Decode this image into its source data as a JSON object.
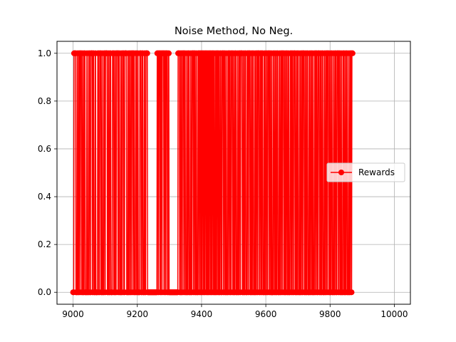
{
  "chart_data": {
    "type": "line",
    "title": "Noise Method, No Neg.",
    "xlabel": "",
    "ylabel": "",
    "xlim": [
      8950,
      10050
    ],
    "ylim": [
      -0.05,
      1.05
    ],
    "x_ticks": [
      9000,
      9200,
      9400,
      9600,
      9800,
      10000
    ],
    "y_ticks": [
      0.0,
      0.2,
      0.4,
      0.6,
      0.8,
      1.0
    ],
    "x_tick_labels": [
      "9000",
      "9200",
      "9400",
      "9600",
      "9800",
      "10000"
    ],
    "y_tick_labels": [
      "0.0",
      "0.2",
      "0.4",
      "0.6",
      "0.8",
      "1.0"
    ],
    "grid": true,
    "legend_position": "center-right",
    "marker": "circle",
    "series": [
      {
        "name": "Rewards",
        "color": "#ff0000",
        "x_start": 9000,
        "x_step": 1,
        "segments": [
          [
            0,
            3
          ],
          [
            1,
            6
          ],
          [
            0,
            4
          ],
          [
            1,
            2
          ],
          [
            0,
            3
          ],
          [
            1,
            3
          ],
          [
            0,
            2
          ],
          [
            1,
            4
          ],
          [
            0,
            3
          ],
          [
            1,
            2
          ],
          [
            0,
            3
          ],
          [
            1,
            3
          ],
          [
            0,
            5
          ],
          [
            1,
            2
          ],
          [
            0,
            4
          ],
          [
            1,
            3
          ],
          [
            0,
            3
          ],
          [
            1,
            5
          ],
          [
            0,
            2
          ],
          [
            1,
            3
          ],
          [
            0,
            4
          ],
          [
            1,
            2
          ],
          [
            0,
            6
          ],
          [
            1,
            3
          ],
          [
            0,
            3
          ],
          [
            1,
            4
          ],
          [
            0,
            3
          ],
          [
            1,
            2
          ],
          [
            0,
            4
          ],
          [
            1,
            3
          ],
          [
            0,
            2
          ],
          [
            1,
            6
          ],
          [
            0,
            3
          ],
          [
            1,
            2
          ],
          [
            0,
            3
          ],
          [
            1,
            3
          ],
          [
            0,
            5
          ],
          [
            1,
            4
          ],
          [
            0,
            3
          ],
          [
            1,
            2
          ],
          [
            0,
            3
          ],
          [
            1,
            5
          ],
          [
            0,
            2
          ],
          [
            1,
            3
          ],
          [
            0,
            4
          ],
          [
            1,
            2
          ],
          [
            0,
            3
          ],
          [
            1,
            4
          ],
          [
            0,
            3
          ],
          [
            1,
            6
          ],
          [
            0,
            4
          ],
          [
            1,
            2
          ],
          [
            0,
            3
          ],
          [
            1,
            3
          ],
          [
            0,
            3
          ],
          [
            1,
            4
          ],
          [
            0,
            2
          ],
          [
            1,
            3
          ],
          [
            0,
            4
          ],
          [
            1,
            3
          ],
          [
            0,
            3
          ],
          [
            1,
            2
          ],
          [
            0,
            5
          ],
          [
            1,
            4
          ],
          [
            0,
            3
          ],
          [
            1,
            3
          ],
          [
            0,
            4
          ],
          [
            1,
            2
          ],
          [
            0,
            3
          ],
          [
            1,
            5
          ],
          [
            0,
            30
          ],
          [
            1,
            3
          ],
          [
            0,
            2
          ],
          [
            1,
            4
          ],
          [
            0,
            2
          ],
          [
            1,
            3
          ],
          [
            0,
            2
          ],
          [
            1,
            5
          ],
          [
            0,
            2
          ],
          [
            1,
            3
          ],
          [
            0,
            2
          ],
          [
            1,
            4
          ],
          [
            0,
            3
          ],
          [
            1,
            2
          ],
          [
            0,
            28
          ],
          [
            1,
            5
          ],
          [
            0,
            3
          ],
          [
            1,
            3
          ],
          [
            0,
            3
          ],
          [
            1,
            4
          ],
          [
            0,
            2
          ],
          [
            1,
            3
          ],
          [
            0,
            4
          ],
          [
            1,
            2
          ],
          [
            0,
            3
          ],
          [
            1,
            3
          ],
          [
            0,
            4
          ],
          [
            1,
            2
          ],
          [
            0,
            3
          ],
          [
            1,
            4
          ],
          [
            0,
            2
          ],
          [
            1,
            3
          ],
          [
            0,
            3
          ],
          [
            1,
            2
          ],
          [
            0,
            4
          ],
          [
            1,
            3
          ],
          [
            0,
            2
          ],
          [
            1,
            3
          ],
          [
            0,
            2
          ],
          [
            1,
            2
          ],
          [
            0,
            2
          ],
          [
            1,
            3
          ],
          [
            0,
            2
          ],
          [
            1,
            2
          ],
          [
            0,
            2
          ],
          [
            1,
            3
          ],
          [
            0,
            2
          ],
          [
            1,
            2
          ],
          [
            0,
            2
          ],
          [
            1,
            2
          ],
          [
            0,
            2
          ],
          [
            1,
            3
          ],
          [
            0,
            2
          ],
          [
            1,
            2
          ],
          [
            0,
            2
          ],
          [
            1,
            3
          ],
          [
            0,
            2
          ],
          [
            1,
            2
          ],
          [
            0,
            3
          ],
          [
            1,
            2
          ],
          [
            0,
            2
          ],
          [
            1,
            3
          ],
          [
            0,
            2
          ],
          [
            1,
            2
          ],
          [
            0,
            3
          ],
          [
            1,
            3
          ],
          [
            0,
            3
          ],
          [
            1,
            4
          ],
          [
            0,
            2
          ],
          [
            1,
            3
          ],
          [
            0,
            3
          ],
          [
            1,
            2
          ],
          [
            0,
            4
          ],
          [
            1,
            3
          ],
          [
            0,
            2
          ],
          [
            1,
            3
          ],
          [
            0,
            3
          ],
          [
            1,
            4
          ],
          [
            0,
            3
          ],
          [
            1,
            2
          ],
          [
            0,
            3
          ],
          [
            1,
            3
          ],
          [
            0,
            4
          ],
          [
            1,
            2
          ],
          [
            0,
            3
          ],
          [
            1,
            3
          ],
          [
            0,
            2
          ],
          [
            1,
            5
          ],
          [
            0,
            3
          ],
          [
            1,
            2
          ],
          [
            0,
            3
          ],
          [
            1,
            3
          ],
          [
            0,
            4
          ],
          [
            1,
            3
          ],
          [
            0,
            2
          ],
          [
            1,
            4
          ],
          [
            0,
            3
          ],
          [
            1,
            2
          ],
          [
            0,
            3
          ],
          [
            1,
            3
          ],
          [
            0,
            4
          ],
          [
            1,
            2
          ],
          [
            0,
            3
          ],
          [
            1,
            3
          ],
          [
            0,
            2
          ],
          [
            1,
            4
          ],
          [
            0,
            3
          ],
          [
            1,
            3
          ],
          [
            0,
            2
          ],
          [
            1,
            3
          ],
          [
            0,
            4
          ],
          [
            1,
            2
          ],
          [
            0,
            3
          ],
          [
            1,
            3
          ],
          [
            0,
            3
          ],
          [
            1,
            4
          ],
          [
            0,
            2
          ],
          [
            1,
            3
          ],
          [
            0,
            3
          ],
          [
            1,
            2
          ],
          [
            0,
            4
          ],
          [
            1,
            3
          ],
          [
            0,
            3
          ],
          [
            1,
            2
          ],
          [
            0,
            3
          ],
          [
            1,
            3
          ],
          [
            0,
            4
          ],
          [
            1,
            2
          ],
          [
            0,
            3
          ],
          [
            1,
            3
          ],
          [
            0,
            2
          ],
          [
            1,
            4
          ],
          [
            0,
            3
          ],
          [
            1,
            2
          ],
          [
            0,
            3
          ],
          [
            1,
            3
          ],
          [
            0,
            3
          ],
          [
            1,
            2
          ],
          [
            0,
            4
          ],
          [
            1,
            3
          ],
          [
            0,
            2
          ],
          [
            1,
            3
          ],
          [
            0,
            3
          ],
          [
            1,
            4
          ],
          [
            0,
            3
          ],
          [
            1,
            2
          ],
          [
            0,
            3
          ],
          [
            1,
            3
          ],
          [
            0,
            4
          ],
          [
            1,
            2
          ],
          [
            0,
            3
          ],
          [
            1,
            3
          ],
          [
            0,
            2
          ],
          [
            1,
            4
          ],
          [
            0,
            3
          ],
          [
            1,
            2
          ],
          [
            0,
            3
          ],
          [
            1,
            3
          ],
          [
            0,
            4
          ],
          [
            1,
            2
          ],
          [
            0,
            3
          ],
          [
            1,
            3
          ],
          [
            0,
            3
          ],
          [
            1,
            2
          ],
          [
            0,
            4
          ],
          [
            1,
            3
          ],
          [
            0,
            2
          ],
          [
            1,
            3
          ],
          [
            0,
            3
          ],
          [
            1,
            4
          ],
          [
            0,
            3
          ],
          [
            1,
            2
          ],
          [
            0,
            3
          ],
          [
            1,
            3
          ],
          [
            0,
            4
          ],
          [
            1,
            2
          ],
          [
            0,
            3
          ],
          [
            1,
            3
          ],
          [
            0,
            2
          ],
          [
            1,
            4
          ],
          [
            0,
            3
          ],
          [
            1,
            2
          ],
          [
            0,
            3
          ],
          [
            1,
            3
          ],
          [
            0,
            4
          ],
          [
            1,
            2
          ],
          [
            0,
            3
          ],
          [
            1,
            3
          ],
          [
            0,
            3
          ],
          [
            1,
            4
          ],
          [
            0,
            2
          ],
          [
            1,
            3
          ],
          [
            0,
            3
          ],
          [
            1,
            2
          ],
          [
            0,
            4
          ],
          [
            1,
            3
          ],
          [
            0,
            3
          ],
          [
            1,
            2
          ],
          [
            0,
            3
          ],
          [
            1,
            3
          ],
          [
            0,
            4
          ],
          [
            1,
            2
          ],
          [
            0,
            3
          ],
          [
            1,
            3
          ],
          [
            0,
            2
          ],
          [
            1,
            3
          ]
        ]
      }
    ]
  }
}
